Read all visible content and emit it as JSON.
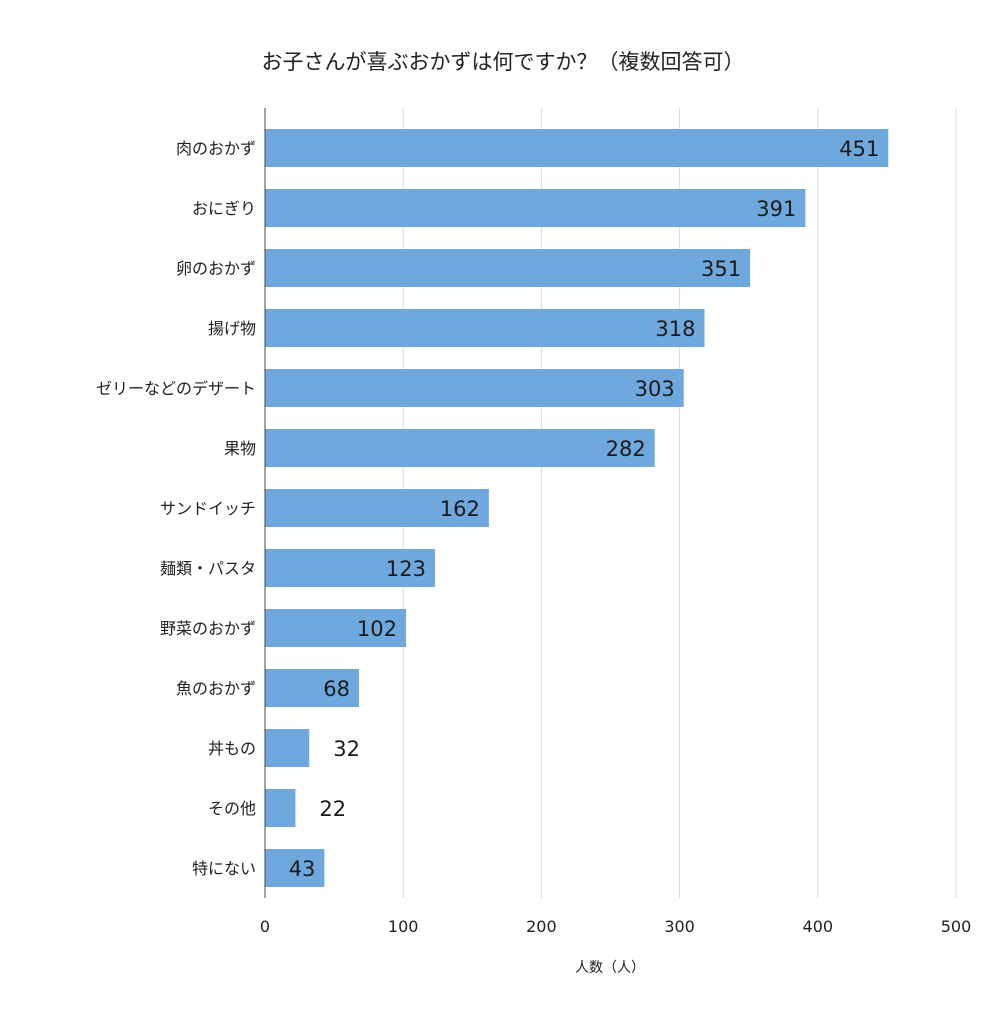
{
  "chart_data": {
    "type": "bar",
    "orientation": "horizontal",
    "title": "お子さんが喜ぶおかずは何ですか？（複数回答可）",
    "xlabel": "人数（人）",
    "ylabel": "",
    "xlim": [
      0,
      500
    ],
    "xticks": [
      0,
      100,
      200,
      300,
      400,
      500
    ],
    "grid": true,
    "legend": "none",
    "bar_color": "#6fa8dc",
    "categories": [
      "肉のおかず",
      "おにぎり",
      "卵のおかず",
      "揚げ物",
      "ゼリーなどのデザート",
      "果物",
      "サンドイッチ",
      "麺類・パスタ",
      "野菜のおかず",
      "魚のおかず",
      "丼もの",
      "その他",
      "特にない"
    ],
    "values": [
      451,
      391,
      351,
      318,
      303,
      282,
      162,
      123,
      102,
      68,
      32,
      22,
      43
    ]
  }
}
